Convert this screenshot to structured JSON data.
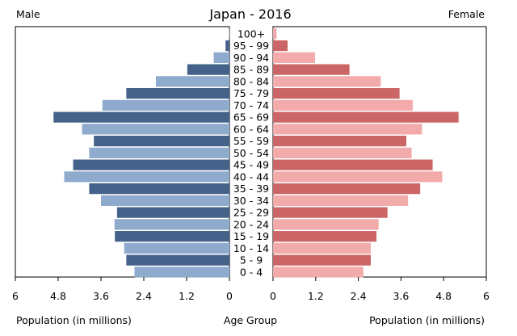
{
  "chart_data": {
    "type": "bar",
    "title": "Japan - 2016",
    "left_label": "Male",
    "right_label": "Female",
    "xlabel_left": "Population (in millions)",
    "xlabel_center": "Age Group",
    "xlabel_right": "Population (in millions)",
    "xlim": [
      0,
      6
    ],
    "left_ticks": [
      "6",
      "4.8",
      "3.6",
      "2.4",
      "1.2",
      "0"
    ],
    "right_ticks": [
      "0",
      "1.2",
      "2.4",
      "3.6",
      "4.8",
      "6"
    ],
    "tick_values": [
      0,
      1.2,
      2.4,
      3.6,
      4.8,
      6
    ],
    "categories": [
      "100+",
      "95 - 99",
      "90 - 94",
      "85 - 89",
      "80 - 84",
      "75 - 79",
      "70 - 74",
      "65 - 69",
      "60 - 64",
      "55 - 59",
      "50 - 54",
      "45 - 49",
      "40 - 44",
      "35 - 39",
      "30 - 34",
      "25 - 29",
      "20 - 24",
      "15 - 19",
      "10 - 14",
      "5 - 9",
      "0 - 4"
    ],
    "series": [
      {
        "name": "Male",
        "values": [
          0.01,
          0.11,
          0.44,
          1.18,
          2.06,
          2.89,
          3.56,
          4.93,
          4.13,
          3.8,
          3.93,
          4.38,
          4.63,
          3.93,
          3.6,
          3.15,
          3.22,
          3.21,
          2.95,
          2.89,
          2.66
        ],
        "colors": [
          "#8eaacd",
          "#44628a"
        ]
      },
      {
        "name": "Female",
        "values": [
          0.1,
          0.41,
          1.18,
          2.15,
          3.03,
          3.56,
          3.93,
          5.22,
          4.19,
          3.75,
          3.9,
          4.49,
          4.76,
          4.14,
          3.8,
          3.22,
          2.97,
          2.91,
          2.75,
          2.75,
          2.54
        ],
        "colors": [
          "#f2aaaa",
          "#cc6666"
        ]
      }
    ]
  }
}
